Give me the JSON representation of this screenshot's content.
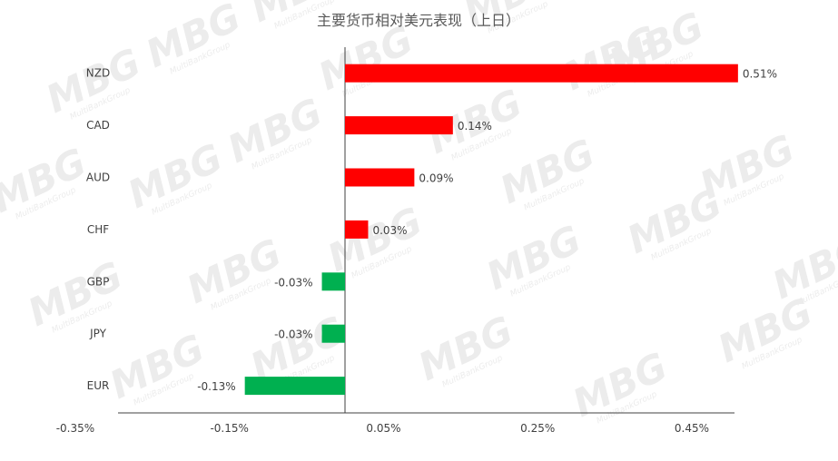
{
  "chart_data": {
    "type": "bar",
    "orientation": "horizontal",
    "title": "主要货币相对美元表现（上日）",
    "categories": [
      "NZD",
      "CAD",
      "AUD",
      "CHF",
      "GBP",
      "JPY",
      "EUR"
    ],
    "values": [
      0.51,
      0.14,
      0.09,
      0.03,
      -0.03,
      -0.03,
      -0.13
    ],
    "data_labels": [
      "0.51%",
      "0.14%",
      "0.09%",
      "0.03%",
      "-0.03%",
      "-0.03%",
      "-0.13%"
    ],
    "x_ticks": [
      -0.35,
      -0.15,
      0.05,
      0.25,
      0.45
    ],
    "x_tick_labels": [
      "-0.35%",
      "-0.15%",
      "0.05%",
      "0.25%",
      "0.45%"
    ],
    "xlim": [
      -0.35,
      0.25
    ],
    "colors": {
      "positive": "#ff0000",
      "negative": "#00b050"
    },
    "grid": false
  },
  "watermark": {
    "text": "MBG",
    "subtext": "MultiBankGroup"
  }
}
